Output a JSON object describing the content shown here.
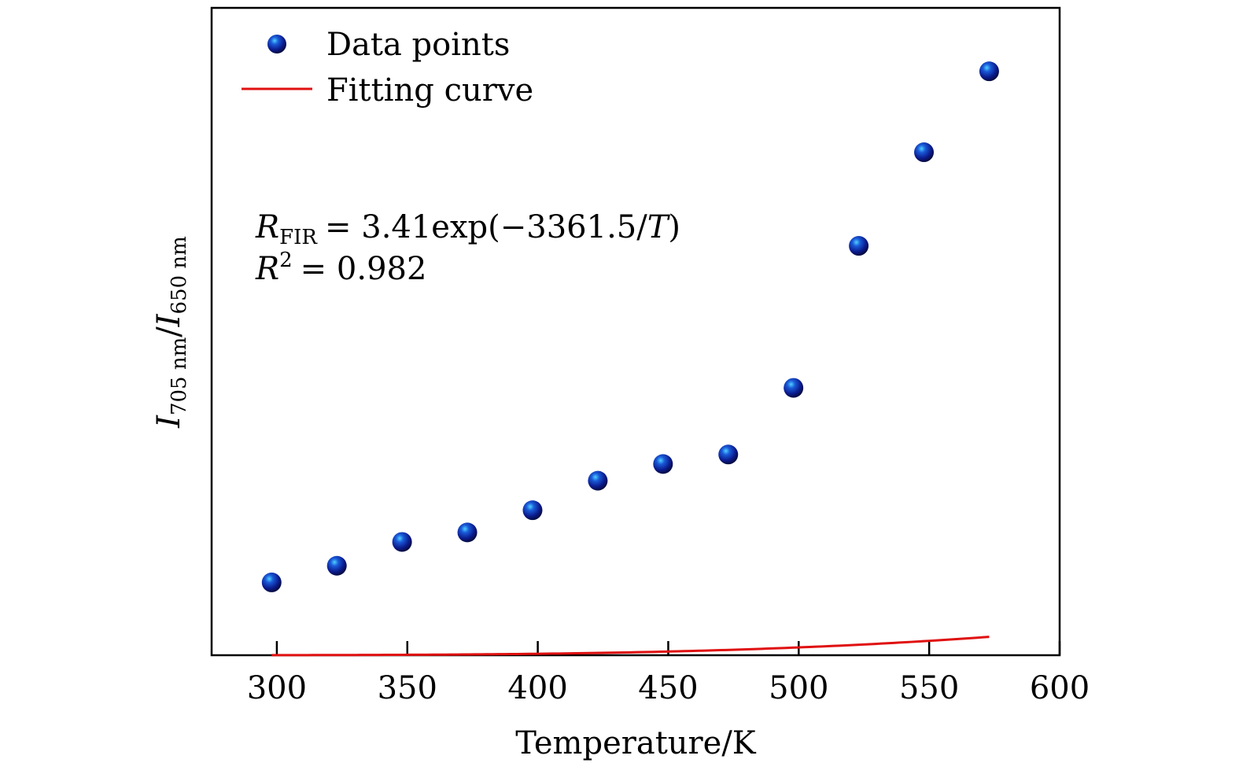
{
  "chart_data": {
    "type": "scatter",
    "title": "",
    "xlabel": "Temperature/K",
    "ylabel": {
      "main": "I",
      "sub1": "705 nm",
      "slash": "/",
      "main2": "I",
      "sub2": "650 nm"
    },
    "xlim": [
      275,
      600
    ],
    "ylim": [
      0,
      1
    ],
    "xticks": [
      300,
      350,
      400,
      450,
      500,
      550,
      600
    ],
    "xtick_labels": [
      "300",
      "350",
      "400",
      "450",
      "500",
      "550",
      "600"
    ],
    "y_ticks_labeled": false,
    "legend": {
      "position": "top-left",
      "points_label": "Data points",
      "curve_label": "Fitting curve"
    },
    "series": [
      {
        "name": "Data points",
        "kind": "scatter",
        "color": "#0b1a8c",
        "x": [
          298,
          323,
          348,
          373,
          398,
          423,
          448,
          473,
          498,
          523,
          548,
          573
        ],
        "y": [
          0.1125,
          0.1382,
          0.175,
          0.1897,
          0.224,
          0.2696,
          0.2954,
          0.3101,
          0.413,
          0.6324,
          0.777,
          0.902
        ]
      },
      {
        "name": "Fitting curve",
        "kind": "line",
        "color": "#e01010",
        "formula": "R_FIR = 3.41exp(-3361.5/T)",
        "x_range": [
          298,
          573
        ],
        "y_scale": 2.94
      }
    ],
    "annotations": {
      "equation": {
        "lhs_main": "R",
        "lhs_sub": "FIR",
        "rhs": "= 3.41exp(−3361.5/",
        "T": "T",
        "close": ")"
      },
      "r2": {
        "main": "R",
        "sup": "2",
        "rhs": "= 0.982"
      }
    }
  }
}
